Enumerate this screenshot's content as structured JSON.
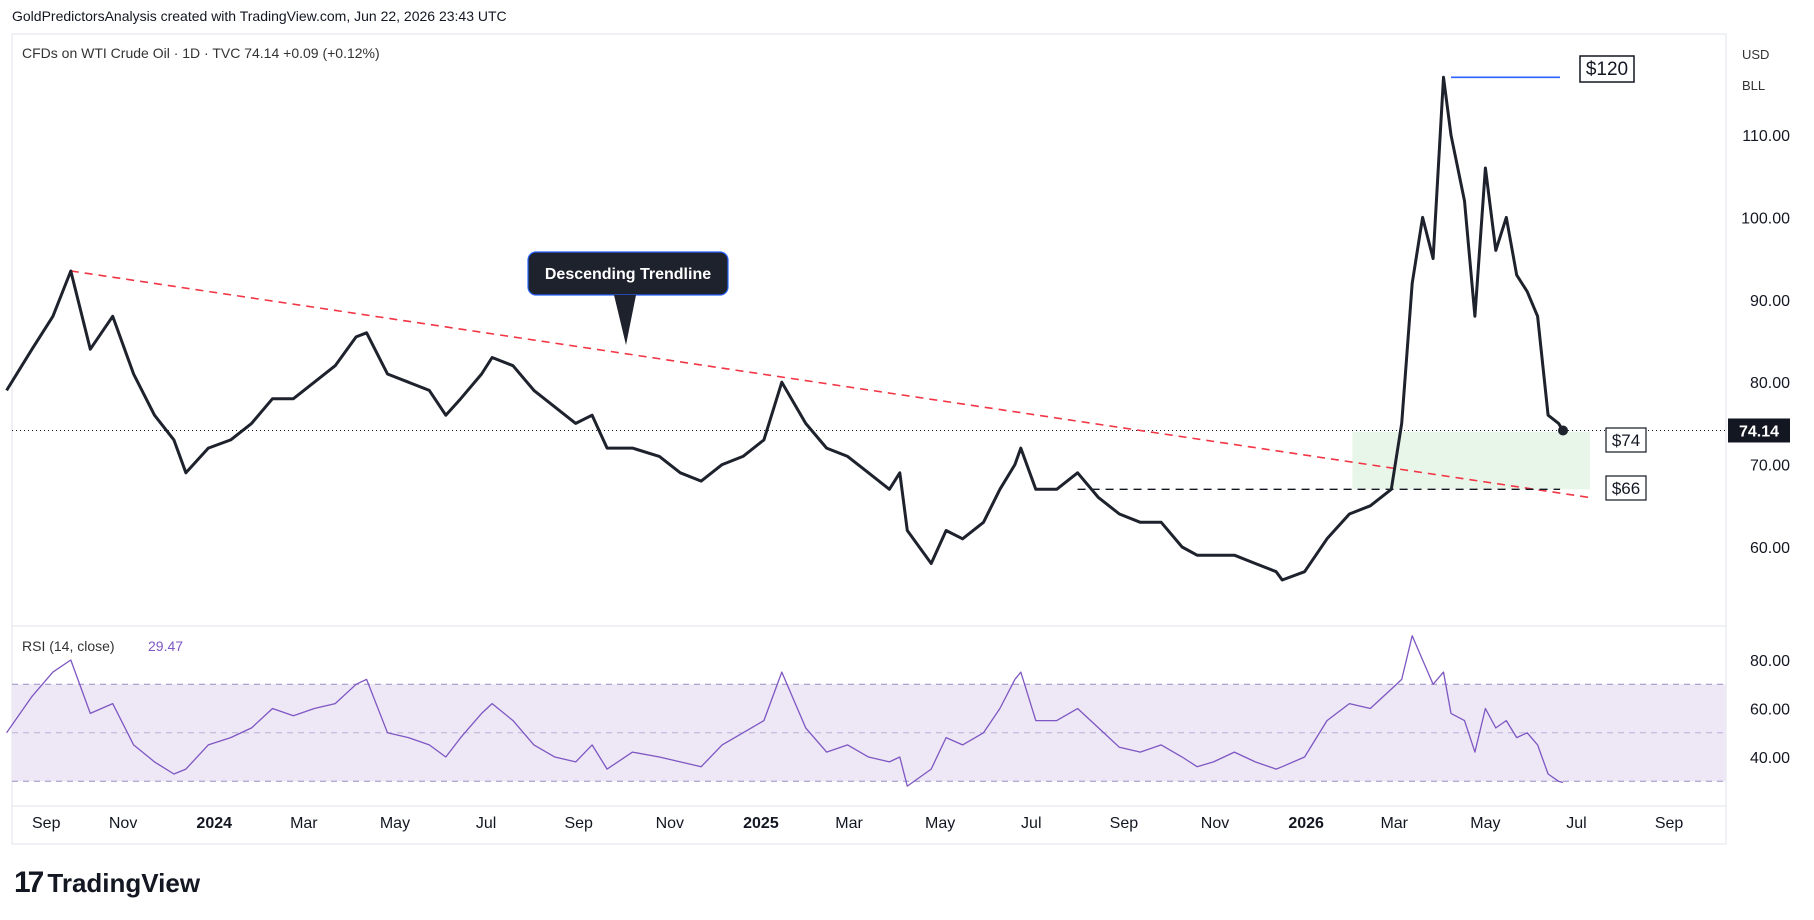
{
  "header": {
    "attribution": "GoldPredictorsAnalysis created with TradingView.com, Jun 22, 2026 23:43 UTC"
  },
  "main_pane": {
    "legend": "CFDs on WTI Crude Oil · 1D · TVC  74.14  +0.09 (+0.12%)",
    "currency": "USD",
    "unit": "BLL",
    "current_price_label": "74.14",
    "annotation_trendline": "Descending Trendline",
    "label_120": "$120",
    "label_74": "$74",
    "label_66": "$66"
  },
  "rsi_pane": {
    "legend_name": "RSI (14, close)",
    "legend_value": "29.47"
  },
  "footer": {
    "brand": "TradingView"
  },
  "colors": {
    "price_line": "#1e222d",
    "trendline": "#f23645",
    "resistance_line": "#2962ff",
    "rsi_line": "#7e57c2",
    "rsi_band": "#ede7f6",
    "support_zone": "#e8f5e9",
    "price_badge": "#131722"
  },
  "chart_data": [
    {
      "type": "line",
      "title": "CFDs on WTI Crude Oil · 1D · TVC",
      "x_ticks": [
        "Sep",
        "Nov",
        "2024",
        "Mar",
        "May",
        "Jul",
        "Sep",
        "Nov",
        "2025",
        "Mar",
        "May",
        "Jul",
        "Sep",
        "Nov",
        "2026",
        "Mar",
        "May",
        "Jul",
        "Sep"
      ],
      "y_ticks": [
        60.0,
        70.0,
        80.0,
        90.0,
        100.0,
        110.0
      ],
      "ylim": [
        52,
        122
      ],
      "series": [
        {
          "x": [
            "2023-08-15",
            "2023-09-01",
            "2023-09-15",
            "2023-09-27",
            "2023-10-10",
            "2023-10-25",
            "2023-11-08",
            "2023-11-22",
            "2023-12-05",
            "2023-12-13",
            "2023-12-28",
            "2024-01-12",
            "2024-01-26",
            "2024-02-09",
            "2024-02-23",
            "2024-03-08",
            "2024-03-22",
            "2024-04-05",
            "2024-04-12",
            "2024-04-26",
            "2024-05-10",
            "2024-05-24",
            "2024-06-04",
            "2024-06-14",
            "2024-06-28",
            "2024-07-05",
            "2024-07-19",
            "2024-08-02",
            "2024-08-16",
            "2024-08-30",
            "2024-09-10",
            "2024-09-20",
            "2024-10-07",
            "2024-10-25",
            "2024-11-08",
            "2024-11-22",
            "2024-12-06",
            "2024-12-20",
            "2025-01-03",
            "2025-01-15",
            "2025-01-31",
            "2025-02-14",
            "2025-02-28",
            "2025-03-14",
            "2025-03-28",
            "2025-04-04",
            "2025-04-09",
            "2025-04-25",
            "2025-05-05",
            "2025-05-16",
            "2025-05-30",
            "2025-06-10",
            "2025-06-20",
            "2025-06-24",
            "2025-07-04",
            "2025-07-18",
            "2025-08-01",
            "2025-08-15",
            "2025-08-29",
            "2025-09-12",
            "2025-09-26",
            "2025-10-10",
            "2025-10-20",
            "2025-10-31",
            "2025-11-14",
            "2025-11-28",
            "2025-12-12",
            "2025-12-16",
            "2025-12-31",
            "2026-01-15",
            "2026-01-30",
            "2026-02-13",
            "2026-02-27",
            "2026-03-06",
            "2026-03-13",
            "2026-03-20",
            "2026-03-27",
            "2026-04-03",
            "2026-04-08",
            "2026-04-17",
            "2026-04-24",
            "2026-05-01",
            "2026-05-08",
            "2026-05-15",
            "2026-05-22",
            "2026-05-29",
            "2026-06-05",
            "2026-06-12",
            "2026-06-19",
            "2026-06-22"
          ],
          "values": [
            79,
            84,
            88,
            93.5,
            84,
            88,
            81,
            76,
            73,
            69,
            72,
            73,
            75,
            78,
            78,
            80,
            82,
            85.5,
            86,
            81,
            80,
            79,
            76,
            78,
            81,
            83,
            82,
            79,
            77,
            75,
            76,
            72,
            72,
            71,
            69,
            68,
            70,
            71,
            73,
            80,
            75,
            72,
            71,
            69,
            67,
            69,
            62,
            58,
            62,
            61,
            63,
            67,
            70,
            72,
            67,
            67,
            69,
            66,
            64,
            63,
            63,
            60,
            59,
            59,
            59,
            58,
            57,
            56,
            57,
            61,
            64,
            65,
            67,
            75,
            92,
            100,
            95,
            117,
            110,
            102,
            88,
            106,
            96,
            100,
            93,
            91,
            88,
            76,
            75,
            74.14
          ]
        }
      ],
      "annotations": [
        {
          "text": "$120",
          "value": 120
        },
        {
          "text": "$74",
          "value": 74
        },
        {
          "text": "$66",
          "value": 66
        },
        {
          "text": "Descending Trendline"
        }
      ],
      "trendline": {
        "from": {
          "x": "2023-09-27",
          "y": 93.5
        },
        "to": {
          "x": "2026-07-10",
          "y": 66
        }
      },
      "resistance_line": {
        "from": {
          "x": "2026-04-08",
          "y": 117
        },
        "to": {
          "x": "2026-06-20",
          "y": 117
        }
      },
      "support_line": {
        "from": {
          "x": "2025-08-01",
          "y": 67
        },
        "to": {
          "x": "2026-06-20",
          "y": 67
        }
      },
      "support_zone": {
        "x0": "2026-02-01",
        "x1": "2026-07-10",
        "y0": 67,
        "y1": 74
      }
    },
    {
      "type": "line",
      "title": "RSI (14, close)",
      "y_ticks": [
        40.0,
        60.0,
        80.0
      ],
      "ylim": [
        25,
        92
      ],
      "bands": [
        30,
        50,
        70
      ],
      "series": [
        {
          "x": [
            "2023-08-15",
            "2023-09-01",
            "2023-09-15",
            "2023-09-27",
            "2023-10-10",
            "2023-10-25",
            "2023-11-08",
            "2023-11-22",
            "2023-12-05",
            "2023-12-13",
            "2023-12-28",
            "2024-01-12",
            "2024-01-26",
            "2024-02-09",
            "2024-02-23",
            "2024-03-08",
            "2024-03-22",
            "2024-04-05",
            "2024-04-12",
            "2024-04-26",
            "2024-05-10",
            "2024-05-24",
            "2024-06-04",
            "2024-06-14",
            "2024-06-28",
            "2024-07-05",
            "2024-07-19",
            "2024-08-02",
            "2024-08-16",
            "2024-08-30",
            "2024-09-10",
            "2024-09-20",
            "2024-10-07",
            "2024-10-25",
            "2024-11-08",
            "2024-11-22",
            "2024-12-06",
            "2024-12-20",
            "2025-01-03",
            "2025-01-15",
            "2025-01-31",
            "2025-02-14",
            "2025-02-28",
            "2025-03-14",
            "2025-03-28",
            "2025-04-04",
            "2025-04-09",
            "2025-04-25",
            "2025-05-05",
            "2025-05-16",
            "2025-05-30",
            "2025-06-10",
            "2025-06-20",
            "2025-06-24",
            "2025-07-04",
            "2025-07-18",
            "2025-08-01",
            "2025-08-15",
            "2025-08-29",
            "2025-09-12",
            "2025-09-26",
            "2025-10-10",
            "2025-10-20",
            "2025-10-31",
            "2025-11-14",
            "2025-11-28",
            "2025-12-12",
            "2025-12-16",
            "2025-12-31",
            "2026-01-15",
            "2026-01-30",
            "2026-02-13",
            "2026-02-27",
            "2026-03-06",
            "2026-03-13",
            "2026-03-20",
            "2026-03-27",
            "2026-04-03",
            "2026-04-08",
            "2026-04-17",
            "2026-04-24",
            "2026-05-01",
            "2026-05-08",
            "2026-05-15",
            "2026-05-22",
            "2026-05-29",
            "2026-06-05",
            "2026-06-12",
            "2026-06-19",
            "2026-06-22"
          ],
          "values": [
            50,
            65,
            75,
            80,
            58,
            62,
            45,
            38,
            33,
            35,
            45,
            48,
            52,
            60,
            57,
            60,
            62,
            70,
            72,
            50,
            48,
            45,
            40,
            48,
            58,
            62,
            55,
            45,
            40,
            38,
            45,
            35,
            42,
            40,
            38,
            36,
            45,
            50,
            55,
            75,
            52,
            42,
            45,
            40,
            38,
            40,
            28,
            35,
            48,
            45,
            50,
            60,
            72,
            75,
            55,
            55,
            60,
            52,
            44,
            42,
            45,
            40,
            36,
            38,
            42,
            38,
            35,
            36,
            40,
            55,
            62,
            60,
            68,
            72,
            90,
            80,
            70,
            75,
            58,
            55,
            42,
            60,
            52,
            55,
            48,
            50,
            45,
            33,
            30,
            29.47
          ]
        }
      ]
    }
  ]
}
